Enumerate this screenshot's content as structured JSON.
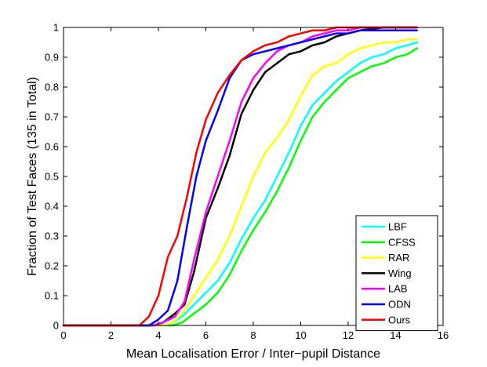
{
  "chart_data": {
    "type": "line",
    "title": "",
    "xlabel": "Mean Localisation Error / Inter−pupil Distance",
    "ylabel": "Fraction of Test Faces (135 in Total)",
    "xlim": [
      0,
      16
    ],
    "ylim": [
      0,
      1
    ],
    "xticks": [
      0,
      2,
      4,
      6,
      8,
      10,
      12,
      14,
      16
    ],
    "yticks": [
      0,
      0.1,
      0.2,
      0.3,
      0.4,
      0.5,
      0.6,
      0.7,
      0.8,
      0.9,
      1
    ],
    "xtick_labels": [
      "0",
      "2",
      "4",
      "6",
      "8",
      "10",
      "12",
      "14",
      "16"
    ],
    "ytick_labels": [
      "0",
      "0.1",
      "0.2",
      "0.3",
      "0.4",
      "0.5",
      "0.6",
      "0.7",
      "0.8",
      "0.9",
      "1"
    ],
    "grid": false,
    "legend_position": "bottom-right",
    "series": [
      {
        "name": "LBF",
        "color": "#00ffff",
        "points": [
          [
            0,
            0
          ],
          [
            4.3,
            0
          ],
          [
            4.6,
            0.01
          ],
          [
            5.0,
            0.03
          ],
          [
            5.5,
            0.07
          ],
          [
            6.0,
            0.11
          ],
          [
            6.5,
            0.15
          ],
          [
            7.0,
            0.21
          ],
          [
            7.5,
            0.29
          ],
          [
            8.0,
            0.36
          ],
          [
            8.5,
            0.42
          ],
          [
            9.0,
            0.5
          ],
          [
            9.5,
            0.58
          ],
          [
            10.0,
            0.67
          ],
          [
            10.5,
            0.74
          ],
          [
            11.0,
            0.78
          ],
          [
            11.5,
            0.82
          ],
          [
            12.0,
            0.85
          ],
          [
            12.5,
            0.88
          ],
          [
            13.0,
            0.9
          ],
          [
            13.5,
            0.91
          ],
          [
            14.0,
            0.93
          ],
          [
            14.5,
            0.94
          ],
          [
            14.9,
            0.95
          ]
        ]
      },
      {
        "name": "CFSS",
        "color": "#00ff00",
        "points": [
          [
            0,
            0
          ],
          [
            4.6,
            0
          ],
          [
            5.0,
            0.01
          ],
          [
            5.5,
            0.04
          ],
          [
            6.0,
            0.07
          ],
          [
            6.5,
            0.11
          ],
          [
            7.0,
            0.17
          ],
          [
            7.5,
            0.25
          ],
          [
            8.0,
            0.32
          ],
          [
            8.5,
            0.38
          ],
          [
            9.0,
            0.45
          ],
          [
            9.5,
            0.53
          ],
          [
            10.0,
            0.62
          ],
          [
            10.5,
            0.7
          ],
          [
            11.0,
            0.75
          ],
          [
            11.5,
            0.79
          ],
          [
            12.0,
            0.83
          ],
          [
            12.5,
            0.85
          ],
          [
            13.0,
            0.87
          ],
          [
            13.5,
            0.88
          ],
          [
            14.0,
            0.9
          ],
          [
            14.5,
            0.91
          ],
          [
            14.9,
            0.93
          ]
        ]
      },
      {
        "name": "RAR",
        "color": "#ffff00",
        "points": [
          [
            0,
            0
          ],
          [
            4.3,
            0
          ],
          [
            4.6,
            0.01
          ],
          [
            5.0,
            0.04
          ],
          [
            5.5,
            0.1
          ],
          [
            6.0,
            0.16
          ],
          [
            6.5,
            0.22
          ],
          [
            7.0,
            0.3
          ],
          [
            7.5,
            0.4
          ],
          [
            8.0,
            0.5
          ],
          [
            8.5,
            0.58
          ],
          [
            9.0,
            0.63
          ],
          [
            9.5,
            0.69
          ],
          [
            10.0,
            0.77
          ],
          [
            10.5,
            0.84
          ],
          [
            11.0,
            0.87
          ],
          [
            11.5,
            0.88
          ],
          [
            12.0,
            0.91
          ],
          [
            12.5,
            0.93
          ],
          [
            13.0,
            0.94
          ],
          [
            13.5,
            0.95
          ],
          [
            14.0,
            0.95
          ],
          [
            14.5,
            0.96
          ],
          [
            14.9,
            0.96
          ]
        ]
      },
      {
        "name": "Wing",
        "color": "#000000",
        "points": [
          [
            0,
            0
          ],
          [
            3.8,
            0
          ],
          [
            4.2,
            0.01
          ],
          [
            4.7,
            0.04
          ],
          [
            5.1,
            0.07
          ],
          [
            5.5,
            0.18
          ],
          [
            6.0,
            0.36
          ],
          [
            6.5,
            0.46
          ],
          [
            7.0,
            0.57
          ],
          [
            7.5,
            0.71
          ],
          [
            8.0,
            0.79
          ],
          [
            8.5,
            0.85
          ],
          [
            9.0,
            0.88
          ],
          [
            9.5,
            0.91
          ],
          [
            10.0,
            0.92
          ],
          [
            10.5,
            0.94
          ],
          [
            11.0,
            0.95
          ],
          [
            11.5,
            0.97
          ],
          [
            12.0,
            0.98
          ],
          [
            12.5,
            0.99
          ],
          [
            13.5,
            1.0
          ],
          [
            14.9,
            1.0
          ]
        ]
      },
      {
        "name": "LAB",
        "color": "#ff00ff",
        "points": [
          [
            0,
            0
          ],
          [
            3.8,
            0
          ],
          [
            4.2,
            0.01
          ],
          [
            4.7,
            0.03
          ],
          [
            5.1,
            0.08
          ],
          [
            5.5,
            0.22
          ],
          [
            6.0,
            0.38
          ],
          [
            6.5,
            0.5
          ],
          [
            7.0,
            0.62
          ],
          [
            7.5,
            0.75
          ],
          [
            8.0,
            0.83
          ],
          [
            8.5,
            0.88
          ],
          [
            9.0,
            0.92
          ],
          [
            9.5,
            0.94
          ],
          [
            10.0,
            0.95
          ],
          [
            10.5,
            0.97
          ],
          [
            11.0,
            0.98
          ],
          [
            11.5,
            0.99
          ],
          [
            12.0,
            0.99
          ],
          [
            12.5,
            1.0
          ],
          [
            14.9,
            1.0
          ]
        ]
      },
      {
        "name": "ODN",
        "color": "#0000ff",
        "points": [
          [
            0,
            0
          ],
          [
            3.6,
            0
          ],
          [
            4.0,
            0.02
          ],
          [
            4.4,
            0.05
          ],
          [
            4.8,
            0.15
          ],
          [
            5.2,
            0.33
          ],
          [
            5.6,
            0.5
          ],
          [
            6.0,
            0.62
          ],
          [
            6.5,
            0.72
          ],
          [
            7.0,
            0.83
          ],
          [
            7.5,
            0.89
          ],
          [
            8.0,
            0.91
          ],
          [
            8.5,
            0.92
          ],
          [
            9.0,
            0.93
          ],
          [
            9.5,
            0.94
          ],
          [
            10.0,
            0.95
          ],
          [
            10.5,
            0.96
          ],
          [
            11.0,
            0.97
          ],
          [
            11.5,
            0.98
          ],
          [
            12.0,
            0.98
          ],
          [
            12.5,
            0.99
          ],
          [
            14.9,
            0.99
          ]
        ]
      },
      {
        "name": "Ours",
        "color": "#ff0000",
        "points": [
          [
            0,
            0
          ],
          [
            3.2,
            0
          ],
          [
            3.6,
            0.03
          ],
          [
            4.0,
            0.1
          ],
          [
            4.4,
            0.23
          ],
          [
            4.8,
            0.3
          ],
          [
            5.2,
            0.43
          ],
          [
            5.6,
            0.58
          ],
          [
            6.0,
            0.69
          ],
          [
            6.5,
            0.78
          ],
          [
            7.0,
            0.84
          ],
          [
            7.5,
            0.89
          ],
          [
            8.0,
            0.92
          ],
          [
            8.5,
            0.94
          ],
          [
            9.0,
            0.95
          ],
          [
            9.5,
            0.97
          ],
          [
            10.0,
            0.98
          ],
          [
            10.5,
            0.99
          ],
          [
            11.0,
            0.99
          ],
          [
            11.5,
            1.0
          ],
          [
            14.9,
            1.0
          ]
        ]
      }
    ]
  }
}
